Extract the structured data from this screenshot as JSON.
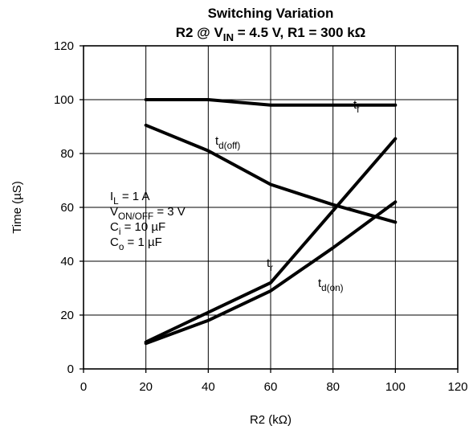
{
  "chart_data": {
    "type": "line",
    "title": {
      "line1": "Switching Variation",
      "line2": [
        {
          "text": "R2 @ V"
        },
        {
          "text": "IN",
          "sub": true
        },
        {
          "text": " = 4.5 V, R1 = 300 kΩ"
        }
      ]
    },
    "xlabel": "R2 (kΩ)",
    "ylabel": "Time  (µS)",
    "xlim": [
      0,
      120
    ],
    "ylim": [
      0,
      120
    ],
    "xticks": [
      0,
      20,
      40,
      60,
      80,
      100,
      120
    ],
    "yticks": [
      0,
      20,
      40,
      60,
      80,
      100,
      120
    ],
    "grid": true,
    "series": [
      {
        "label": [
          {
            "text": "t"
          },
          {
            "text": "f",
            "sub": true
          }
        ],
        "x": [
          20,
          40,
          60,
          80,
          100
        ],
        "y": [
          100,
          100,
          98,
          98,
          98
        ]
      },
      {
        "label": [
          {
            "text": "t"
          },
          {
            "text": "d(off)",
            "sub": true
          }
        ],
        "x": [
          20,
          40,
          60,
          80,
          100
        ],
        "y": [
          90.5,
          81,
          68.5,
          61,
          54.5
        ]
      },
      {
        "label": [
          {
            "text": "t"
          },
          {
            "text": "r",
            "sub": true
          }
        ],
        "x": [
          20,
          60,
          100
        ],
        "y": [
          10,
          32,
          85.5
        ]
      },
      {
        "label": [
          {
            "text": "t"
          },
          {
            "text": "d(on)",
            "sub": true
          }
        ],
        "x": [
          20,
          40,
          60,
          80,
          100
        ],
        "y": [
          9.5,
          18,
          29,
          45,
          62
        ]
      }
    ],
    "annotations": [
      [
        {
          "text": "I"
        },
        {
          "text": "L",
          "sub": true
        },
        {
          "text": " = 1 A"
        }
      ],
      [
        {
          "text": "V"
        },
        {
          "text": "ON/OFF",
          "sub": true
        },
        {
          "text": " = 3 V"
        }
      ],
      [
        {
          "text": "C"
        },
        {
          "text": "i",
          "sub": true
        },
        {
          "text": " = 10 µF"
        }
      ],
      [
        {
          "text": "C"
        },
        {
          "text": "o",
          "sub": true
        },
        {
          "text": " = 1 µF"
        }
      ]
    ]
  }
}
